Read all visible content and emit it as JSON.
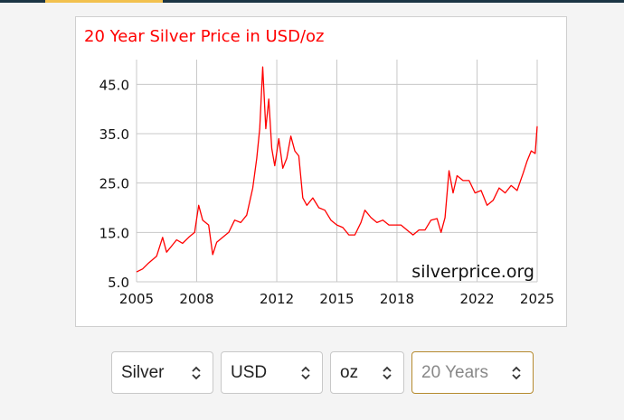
{
  "chart_data": {
    "type": "line",
    "title": "20 Year Silver Price in USD/oz",
    "watermark": "silverprice.org",
    "xlim": [
      2005,
      2025
    ],
    "ylim": [
      5.0,
      50.0
    ],
    "x_ticks": [
      2005,
      2008,
      2012,
      2015,
      2018,
      2022,
      2025
    ],
    "x_tick_labels": [
      "2005",
      "2008",
      "2012",
      "2015",
      "2018",
      "2022",
      "2025"
    ],
    "y_ticks": [
      5.0,
      15.0,
      25.0,
      35.0,
      45.0
    ],
    "y_tick_labels": [
      "5.0",
      "15.0",
      "25.0",
      "35.0",
      "45.0"
    ],
    "grid": true,
    "line_color": "#ff0000",
    "title_color": "#ff0000",
    "series": [
      {
        "x": [
          2005.0,
          2005.3,
          2005.6,
          2006.0,
          2006.3,
          2006.5,
          2006.8,
          2007.0,
          2007.3,
          2007.6,
          2007.9,
          2008.1,
          2008.3,
          2008.6,
          2008.8,
          2009.0,
          2009.3,
          2009.6,
          2009.9,
          2010.2,
          2010.5,
          2010.8,
          2011.0,
          2011.15,
          2011.3,
          2011.45,
          2011.6,
          2011.75,
          2011.9,
          2012.1,
          2012.3,
          2012.5,
          2012.7,
          2012.9,
          2013.1,
          2013.3,
          2013.5,
          2013.8,
          2014.1,
          2014.4,
          2014.7,
          2015.0,
          2015.3,
          2015.6,
          2015.9,
          2016.2,
          2016.4,
          2016.7,
          2017.0,
          2017.3,
          2017.6,
          2017.9,
          2018.2,
          2018.5,
          2018.8,
          2019.1,
          2019.4,
          2019.7,
          2020.0,
          2020.2,
          2020.4,
          2020.6,
          2020.8,
          2021.0,
          2021.3,
          2021.6,
          2021.9,
          2022.2,
          2022.5,
          2022.8,
          2023.1,
          2023.4,
          2023.7,
          2024.0,
          2024.3,
          2024.5,
          2024.7,
          2024.9,
          2025.0
        ],
        "y": [
          7.0,
          7.6,
          8.8,
          10.2,
          14.0,
          11.0,
          12.5,
          13.5,
          12.8,
          14.0,
          15.0,
          20.5,
          17.5,
          16.5,
          10.5,
          13.0,
          14.0,
          15.0,
          17.5,
          17.0,
          18.5,
          24.0,
          30.0,
          36.0,
          48.5,
          36.0,
          42.0,
          32.0,
          28.5,
          34.0,
          28.0,
          30.0,
          34.5,
          31.5,
          30.5,
          22.0,
          20.5,
          22.0,
          20.0,
          19.5,
          17.5,
          16.5,
          16.0,
          14.5,
          14.5,
          17.0,
          19.5,
          18.0,
          17.0,
          17.5,
          16.5,
          16.5,
          16.5,
          15.5,
          14.5,
          15.5,
          15.5,
          17.5,
          17.8,
          15.0,
          18.0,
          27.5,
          23.0,
          26.5,
          25.5,
          25.5,
          23.0,
          23.5,
          20.5,
          21.5,
          24.0,
          23.0,
          24.5,
          23.5,
          27.0,
          29.5,
          31.5,
          31.0,
          36.5
        ]
      }
    ]
  },
  "controls": {
    "metal": "Silver",
    "currency": "USD",
    "unit": "oz",
    "period": "20 Years"
  }
}
